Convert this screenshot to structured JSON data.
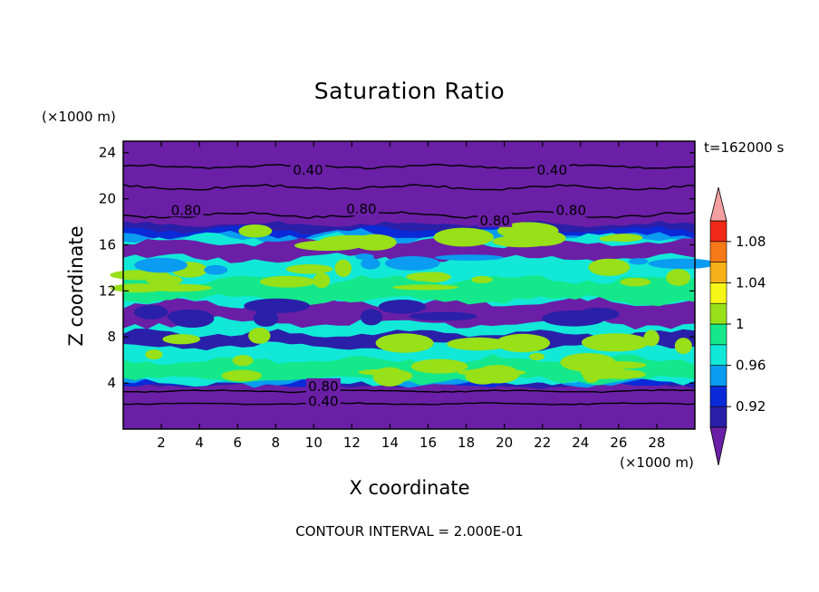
{
  "chart_data": {
    "type": "heatmap",
    "title": "Saturation Ratio",
    "xlabel": "X coordinate",
    "ylabel": "Z coordinate",
    "x_unit": "(×1000 m)",
    "y_unit": "(×1000 m)",
    "time_label": "t=162000 s",
    "footer": "CONTOUR INTERVAL = 2.000E-01",
    "xlim": [
      0,
      30
    ],
    "ylim": [
      0,
      25
    ],
    "xticks": [
      2,
      4,
      6,
      8,
      10,
      12,
      14,
      16,
      18,
      20,
      22,
      24,
      26,
      28
    ],
    "yticks": [
      4,
      8,
      12,
      16,
      20,
      24
    ],
    "colorbar": {
      "levels": [
        0.9,
        0.92,
        0.94,
        0.96,
        0.98,
        1.0,
        1.02,
        1.04,
        1.06,
        1.08,
        1.1
      ],
      "labels": [
        "0.92",
        "0.96",
        "1",
        "1.04",
        "1.08"
      ],
      "colors": [
        "#6a1fa6",
        "#2a1fa8",
        "#0a2ad8",
        "#0a9cf0",
        "#12e8d8",
        "#14e88a",
        "#98e018",
        "#f6f618",
        "#f6b018",
        "#f67a18",
        "#f02818",
        "#f4a0a0"
      ]
    },
    "layers": [
      {
        "z": [
          0,
          3.8
        ],
        "value": "0.40–0.80"
      },
      {
        "z": [
          3.8,
          7
        ],
        "value": "0.96–1.02"
      },
      {
        "z": [
          7,
          9
        ],
        "value": "0.92–1.00"
      },
      {
        "z": [
          9,
          11
        ],
        "value": "0.90–0.98"
      },
      {
        "z": [
          11,
          15
        ],
        "value": "0.96–1.02"
      },
      {
        "z": [
          15,
          17.8
        ],
        "value": "0.92–1.02"
      },
      {
        "z": [
          17.8,
          25
        ],
        "value": "0.40–0.80"
      }
    ],
    "contour_labels": [
      {
        "x": 9.7,
        "z": 22.5,
        "text": "0.40"
      },
      {
        "x": 22.5,
        "z": 22.5,
        "text": "0.40"
      },
      {
        "x": 3.3,
        "z": 19.0,
        "text": "0.80"
      },
      {
        "x": 12.5,
        "z": 19.1,
        "text": "0.80"
      },
      {
        "x": 19.5,
        "z": 18.1,
        "text": "0.80"
      },
      {
        "x": 23.5,
        "z": 19.0,
        "text": "0.80"
      },
      {
        "x": 10.5,
        "z": 3.7,
        "text": "0.80"
      },
      {
        "x": 10.5,
        "z": 2.4,
        "text": "0.40"
      }
    ]
  }
}
